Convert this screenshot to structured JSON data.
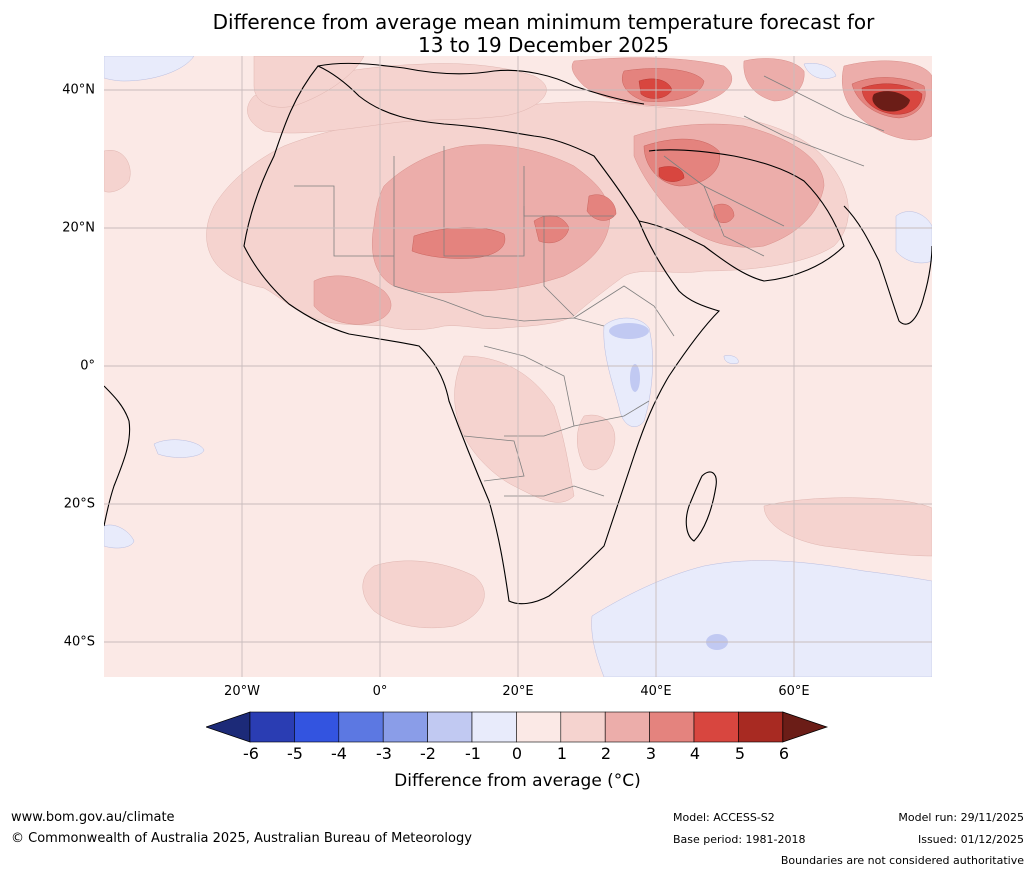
{
  "title": {
    "line1": "Difference from average mean minimum temperature forecast for",
    "line2": "13 to 19 December 2025"
  },
  "axes": {
    "lat_labels": [
      "40°N",
      "20°N",
      "0°",
      "20°S",
      "40°S"
    ],
    "lon_labels": [
      "20°W",
      "0°",
      "20°E",
      "40°E",
      "60°E"
    ]
  },
  "colorbar": {
    "ticks": [
      "-6",
      "-5",
      "-4",
      "-3",
      "-2",
      "-1",
      "0",
      "1",
      "2",
      "3",
      "4",
      "5",
      "6"
    ],
    "colors": [
      "#1c2a78",
      "#2a3db3",
      "#3354e0",
      "#5c78e2",
      "#8a9de8",
      "#c1c9f2",
      "#e8ebfb",
      "#fbe9e6",
      "#f5d3cf",
      "#ecadaa",
      "#e4837e",
      "#d8463f",
      "#a82a22",
      "#6b1d17"
    ],
    "title": "Difference from average (°C)"
  },
  "footer": {
    "website": "www.bom.gov.au/climate",
    "copyright": "© Commonwealth of Australia 2025, Australian Bureau of Meteorology",
    "model": "Model: ACCESS-S2",
    "base_period": "Base period: 1981-2018",
    "model_run": "Model run: 29/11/2025",
    "issued": "Issued: 01/12/2025",
    "disclaimer": "Boundaries are not considered authoritative"
  }
}
